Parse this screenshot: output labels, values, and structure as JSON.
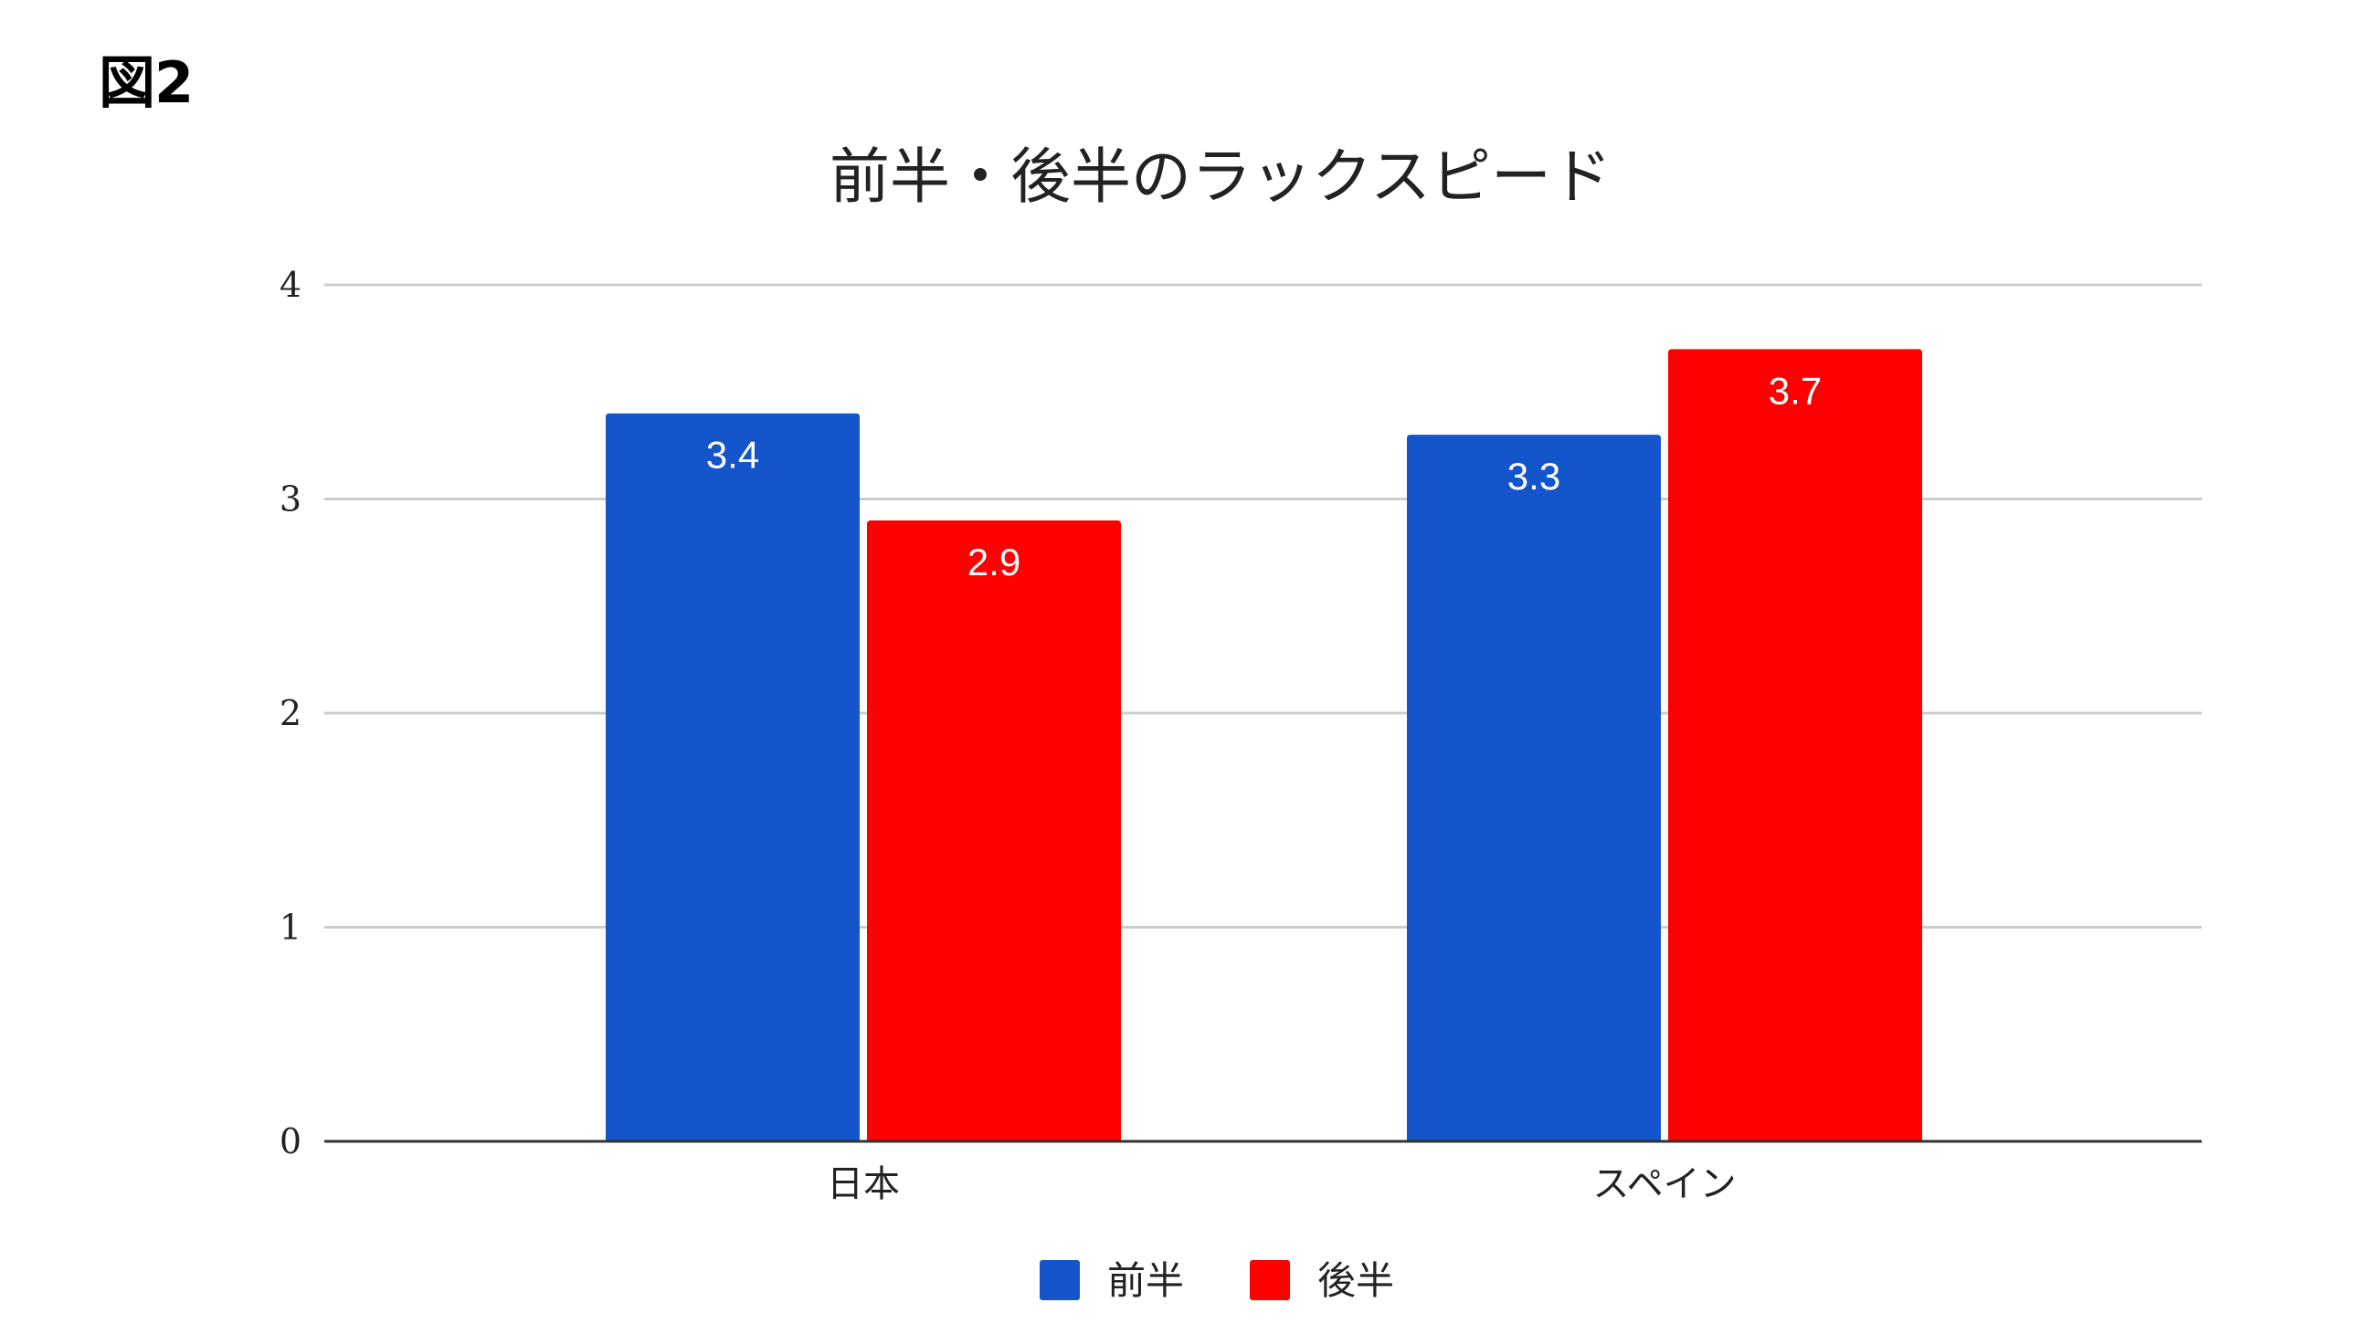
{
  "figure_label": "図2",
  "chart_data": {
    "type": "bar",
    "title": "前半・後半のラックスピード",
    "xlabel": "",
    "ylabel": "",
    "categories": [
      "日本",
      "スペイン"
    ],
    "series": [
      {
        "name": "前半",
        "values": [
          3.4,
          3.3
        ],
        "value_labels": [
          "3.4",
          "3.3"
        ],
        "color": "#1555cc"
      },
      {
        "name": "後半",
        "values": [
          2.9,
          3.7
        ],
        "value_labels": [
          "2.9",
          "3.7"
        ],
        "color": "#ff0000"
      }
    ],
    "ylim": [
      0,
      4
    ],
    "yticks": [
      0,
      1,
      2,
      3,
      4
    ],
    "ytick_labels": [
      "0",
      "1",
      "2",
      "3",
      "4"
    ],
    "grid": true,
    "legend_position": "bottom"
  }
}
